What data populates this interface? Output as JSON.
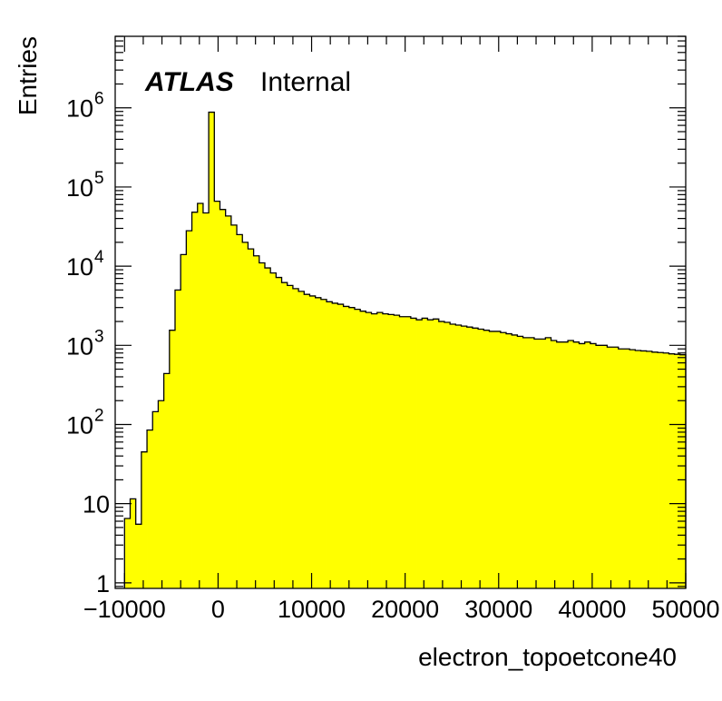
{
  "chart_data": {
    "type": "histogram",
    "xlabel": "electron_topoetcone40",
    "ylabel": "Entries",
    "label_bold": "ATLAS",
    "label_text": "Internal",
    "xlim": [
      -11000,
      50000
    ],
    "ylim": [
      0.85,
      8000000
    ],
    "y_scale": "log",
    "fill_color": "#ffff00",
    "line_color": "#000000",
    "x_ticks": [
      {
        "value": -10000,
        "label": "−10000"
      },
      {
        "value": 0,
        "label": "0"
      },
      {
        "value": 10000,
        "label": "10000"
      },
      {
        "value": 20000,
        "label": "20000"
      },
      {
        "value": 30000,
        "label": "30000"
      },
      {
        "value": 40000,
        "label": "40000"
      },
      {
        "value": 50000,
        "label": "50000"
      }
    ],
    "y_ticks": [
      {
        "value": 1,
        "label": "1",
        "exp": ""
      },
      {
        "value": 10,
        "label": "10",
        "exp": ""
      },
      {
        "value": 100,
        "label": "10",
        "exp": "2"
      },
      {
        "value": 1000,
        "label": "10",
        "exp": "3"
      },
      {
        "value": 10000,
        "label": "10",
        "exp": "4"
      },
      {
        "value": 100000,
        "label": "10",
        "exp": "5"
      },
      {
        "value": 1000000,
        "label": "10",
        "exp": "6"
      }
    ],
    "bin_start": -10000,
    "bin_width": 600,
    "values": [
      6.5,
      11.5,
      5.5,
      45,
      85,
      145,
      200,
      440,
      1550,
      5000,
      14000,
      28000,
      48000,
      62000,
      47000,
      880000,
      66000,
      52000,
      43000,
      33000,
      25000,
      20000,
      16500,
      13500,
      11000,
      9500,
      8200,
      7200,
      6200,
      5700,
      5200,
      4800,
      4400,
      4200,
      4000,
      3800,
      3550,
      3400,
      3300,
      3100,
      3000,
      2850,
      2700,
      2600,
      2500,
      2600,
      2500,
      2450,
      2400,
      2300,
      2300,
      2200,
      2100,
      2200,
      2100,
      2150,
      2000,
      1950,
      1850,
      1800,
      1750,
      1700,
      1650,
      1600,
      1550,
      1500,
      1500,
      1450,
      1400,
      1350,
      1300,
      1250,
      1250,
      1200,
      1200,
      1250,
      1150,
      1100,
      1100,
      1150,
      1100,
      1050,
      1100,
      1050,
      1000,
      1000,
      950,
      950,
      900,
      900,
      880,
      860,
      850,
      840,
      820,
      810,
      800,
      780,
      770,
      760
    ]
  }
}
